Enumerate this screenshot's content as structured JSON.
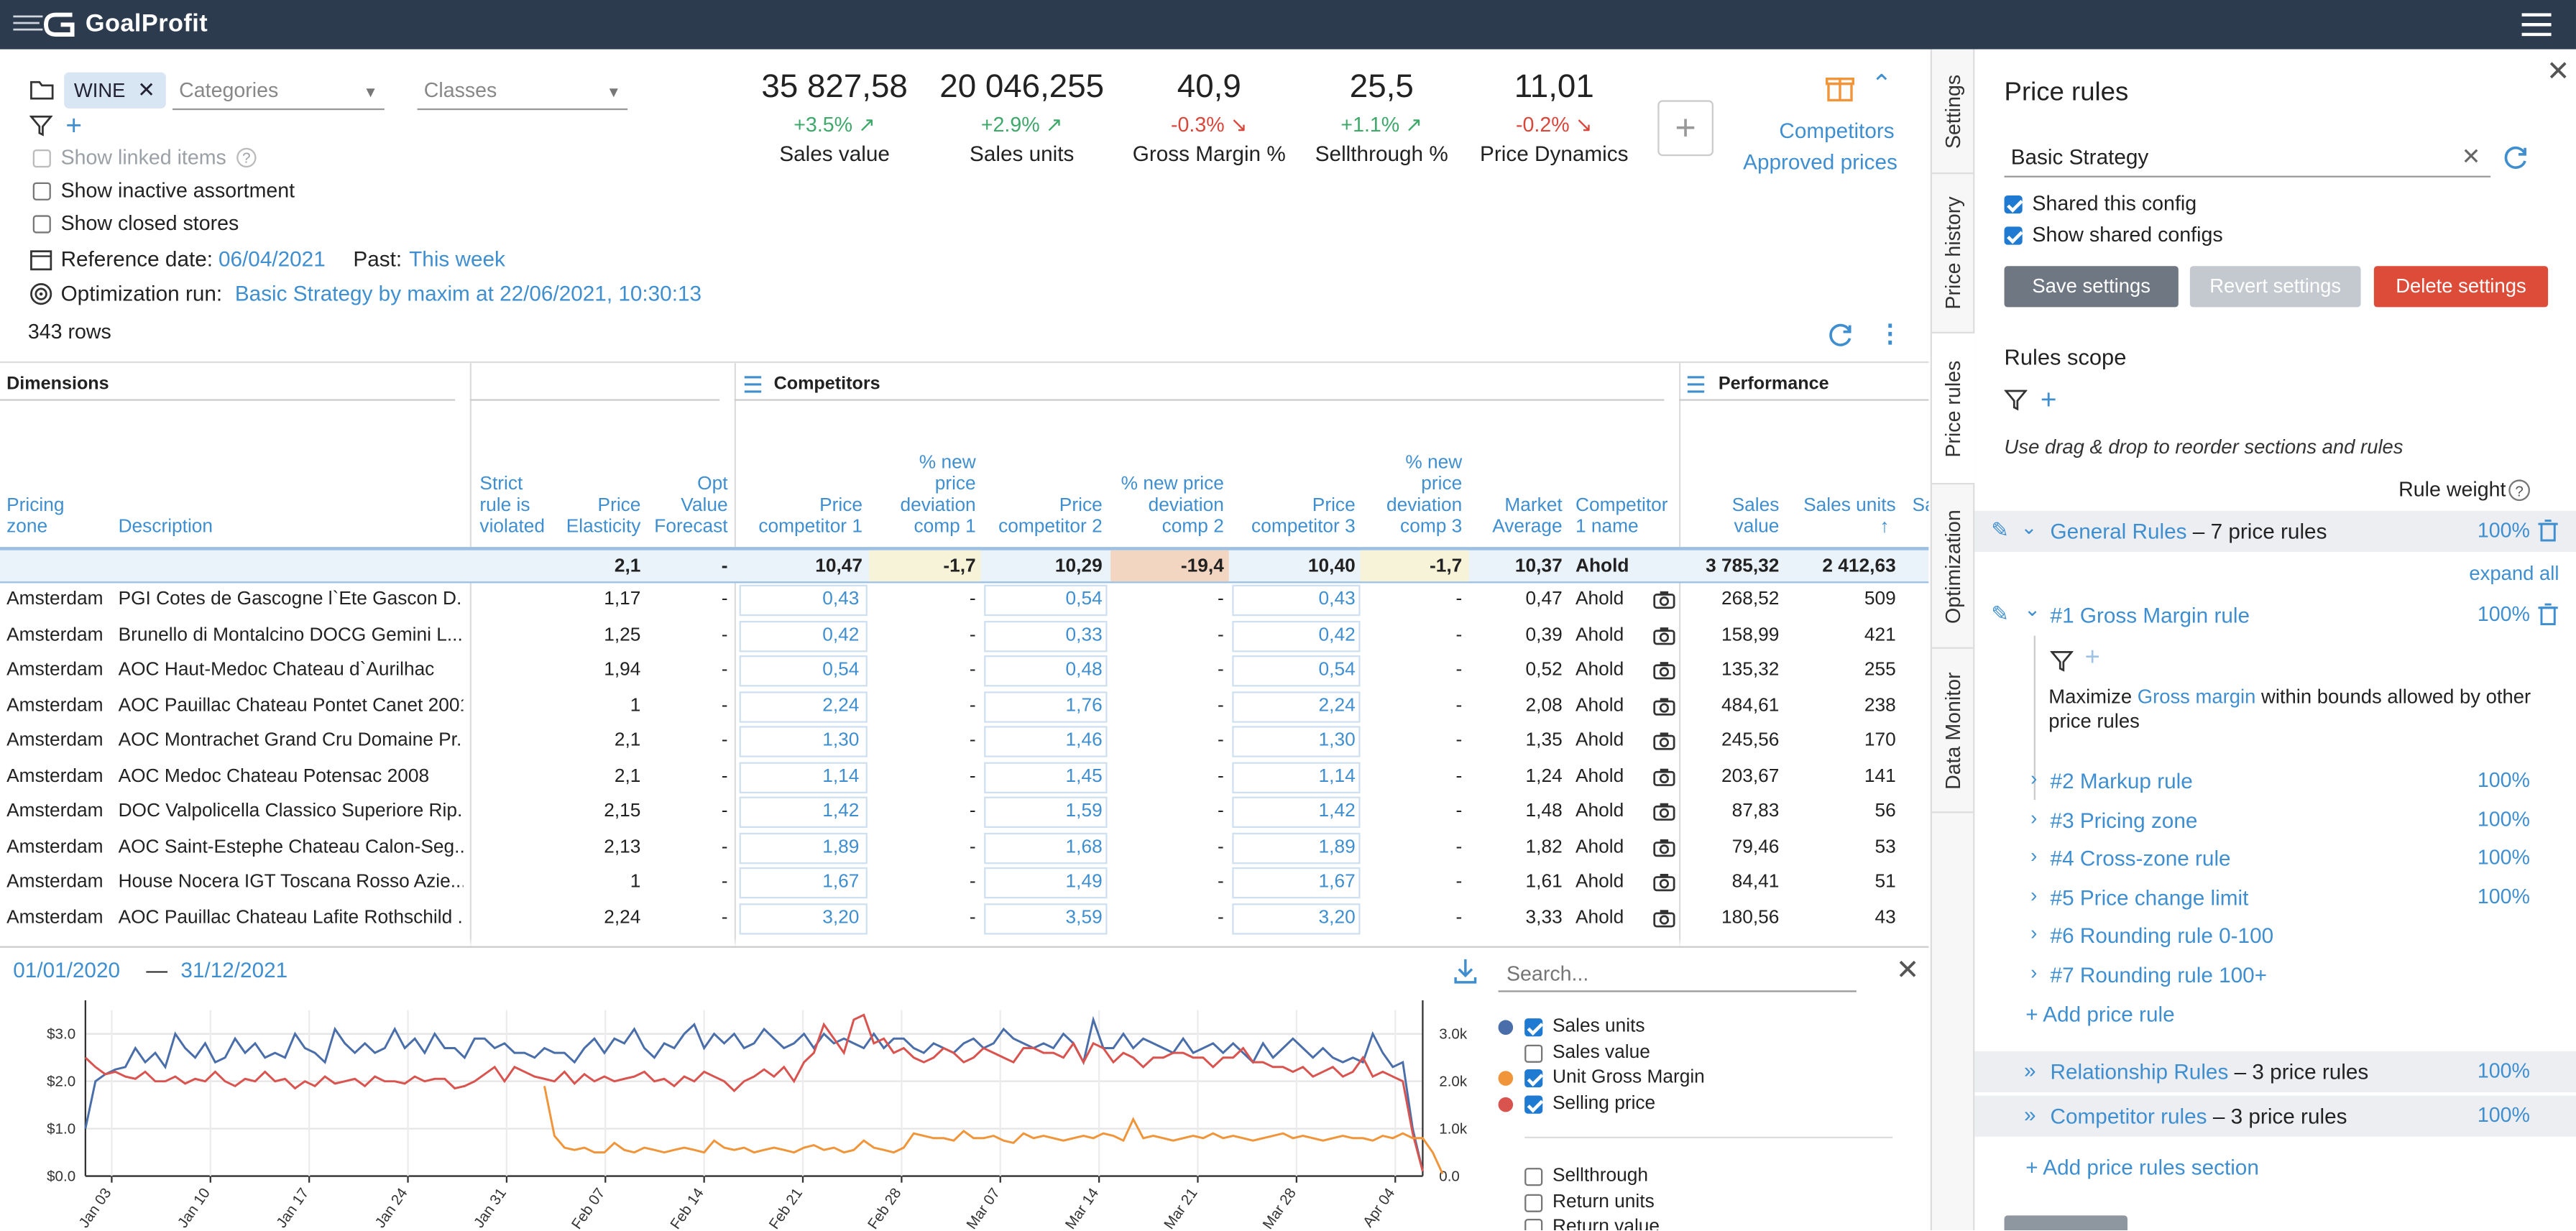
{
  "app": {
    "name": "GoalProfit"
  },
  "filters": {
    "chip": "WINE",
    "categories_placeholder": "Categories",
    "classes_placeholder": "Classes",
    "show_linked": "Show linked items",
    "show_inactive": "Show inactive assortment",
    "show_closed": "Show closed stores",
    "reference_label": "Reference date:",
    "reference_date": "06/04/2021",
    "past_label": "Past:",
    "past_value": "This week",
    "optimization_label": "Optimization run:",
    "optimization_value": "Basic Strategy by maxim at 22/06/2021, 10:30:13",
    "row_count": "343 rows"
  },
  "kpis": [
    {
      "value": "35 827,58",
      "delta": "+3.5%",
      "dir": "up",
      "label": "Sales value"
    },
    {
      "value": "20 046,255",
      "delta": "+2.9%",
      "dir": "up",
      "label": "Sales units"
    },
    {
      "value": "40,9",
      "delta": "-0.3%",
      "dir": "down",
      "label": "Gross Margin %"
    },
    {
      "value": "25,5",
      "delta": "+1.1%",
      "dir": "up",
      "label": "Sellthrough %"
    },
    {
      "value": "11,01",
      "delta": "-0.2%",
      "dir": "down",
      "label": "Price Dynamics"
    }
  ],
  "links": {
    "competitors": "Competitors",
    "approved": "Approved prices"
  },
  "table": {
    "groups": {
      "dimensions": "Dimensions",
      "competitors": "Competitors",
      "performance": "Performance"
    },
    "headers": {
      "pricing_zone": [
        "Pricing",
        "zone"
      ],
      "description": "Description",
      "strict": [
        "Strict",
        "rule is",
        "violated"
      ],
      "elasticity": [
        "Price",
        "Elasticity"
      ],
      "opt_forecast": [
        "Opt",
        "Value",
        "Forecast"
      ],
      "pc1": [
        "Price",
        "competitor 1"
      ],
      "dev1": [
        "% new",
        "price",
        "deviation",
        "comp 1"
      ],
      "pc2": [
        "Price",
        "competitor 2"
      ],
      "dev2": [
        "% new price",
        "deviation",
        "comp 2"
      ],
      "pc3": [
        "Price",
        "competitor 3"
      ],
      "dev3": [
        "% new",
        "price",
        "deviation",
        "comp 3"
      ],
      "market": [
        "Market",
        "Average"
      ],
      "comp_name": [
        "Competitor",
        "1 name"
      ],
      "sales_value": [
        "Sales",
        "value"
      ],
      "sales_units": "Sales units",
      "cut": "Sa"
    },
    "totals": {
      "elasticity": "2,1",
      "opt": "-",
      "pc1": "10,47",
      "dev1": "-1,7",
      "pc2": "10,29",
      "dev2": "-19,4",
      "pc3": "10,40",
      "dev3": "-1,7",
      "market": "10,37",
      "comp": "Ahold",
      "sales_value": "3 785,32",
      "sales_units": "2 412,63"
    },
    "rows": [
      {
        "zone": "Amsterdam",
        "desc": "PGI Cotes de Gascogne l`Ete Gascon D...",
        "el": "1,17",
        "opt": "-",
        "pc1": "0,43",
        "d1": "-",
        "pc2": "0,54",
        "d2": "-",
        "pc3": "0,43",
        "d3": "-",
        "mkt": "0,47",
        "comp": "Ahold",
        "sv": "268,52",
        "su": "509"
      },
      {
        "zone": "Amsterdam",
        "desc": "Brunello di Montalcino DOCG Gemini L...",
        "el": "1,25",
        "opt": "-",
        "pc1": "0,42",
        "d1": "-",
        "pc2": "0,33",
        "d2": "-",
        "pc3": "0,42",
        "d3": "-",
        "mkt": "0,39",
        "comp": "Ahold",
        "sv": "158,99",
        "su": "421"
      },
      {
        "zone": "Amsterdam",
        "desc": "AOC Haut-Medoc Chateau d`Aurilhac",
        "el": "1,94",
        "opt": "-",
        "pc1": "0,54",
        "d1": "-",
        "pc2": "0,48",
        "d2": "-",
        "pc3": "0,54",
        "d3": "-",
        "mkt": "0,52",
        "comp": "Ahold",
        "sv": "135,32",
        "su": "255"
      },
      {
        "zone": "Amsterdam",
        "desc": "AOC Pauillac Chateau Pontet Canet 2001",
        "el": "1",
        "opt": "-",
        "pc1": "2,24",
        "d1": "-",
        "pc2": "1,76",
        "d2": "-",
        "pc3": "2,24",
        "d3": "-",
        "mkt": "2,08",
        "comp": "Ahold",
        "sv": "484,61",
        "su": "238"
      },
      {
        "zone": "Amsterdam",
        "desc": "AOC Montrachet Grand Cru Domaine Pr...",
        "el": "2,1",
        "opt": "-",
        "pc1": "1,30",
        "d1": "-",
        "pc2": "1,46",
        "d2": "-",
        "pc3": "1,30",
        "d3": "-",
        "mkt": "1,35",
        "comp": "Ahold",
        "sv": "245,56",
        "su": "170"
      },
      {
        "zone": "Amsterdam",
        "desc": "AOC Medoc Chateau Potensac 2008",
        "el": "2,1",
        "opt": "-",
        "pc1": "1,14",
        "d1": "-",
        "pc2": "1,45",
        "d2": "-",
        "pc3": "1,14",
        "d3": "-",
        "mkt": "1,24",
        "comp": "Ahold",
        "sv": "203,67",
        "su": "141"
      },
      {
        "zone": "Amsterdam",
        "desc": "DOC Valpolicella Classico Superiore Rip...",
        "el": "2,15",
        "opt": "-",
        "pc1": "1,42",
        "d1": "-",
        "pc2": "1,59",
        "d2": "-",
        "pc3": "1,42",
        "d3": "-",
        "mkt": "1,48",
        "comp": "Ahold",
        "sv": "87,83",
        "su": "56"
      },
      {
        "zone": "Amsterdam",
        "desc": "AOC Saint-Estephe Chateau Calon-Seg...",
        "el": "2,13",
        "opt": "-",
        "pc1": "1,89",
        "d1": "-",
        "pc2": "1,68",
        "d2": "-",
        "pc3": "1,89",
        "d3": "-",
        "mkt": "1,82",
        "comp": "Ahold",
        "sv": "79,46",
        "su": "53"
      },
      {
        "zone": "Amsterdam",
        "desc": "House Nocera IGT Toscana Rosso Azie...",
        "el": "1",
        "opt": "-",
        "pc1": "1,67",
        "d1": "-",
        "pc2": "1,49",
        "d2": "-",
        "pc3": "1,67",
        "d3": "-",
        "mkt": "1,61",
        "comp": "Ahold",
        "sv": "84,41",
        "su": "51"
      },
      {
        "zone": "Amsterdam",
        "desc": "AOC Pauillac Chateau Lafite Rothschild ...",
        "el": "2,24",
        "opt": "-",
        "pc1": "3,20",
        "d1": "-",
        "pc2": "3,59",
        "d2": "-",
        "pc3": "3,20",
        "d3": "-",
        "mkt": "3,33",
        "comp": "Ahold",
        "sv": "180,56",
        "su": "43"
      }
    ]
  },
  "side_tabs": [
    "Settings",
    "Price history",
    "Price rules",
    "Optimization",
    "Data Monitor"
  ],
  "panel": {
    "title": "Price rules",
    "strategy": "Basic Strategy",
    "shared_this": "Shared this config",
    "show_shared": "Show shared configs",
    "save": "Save settings",
    "revert": "Revert settings",
    "delete": "Delete settings",
    "scope_title": "Rules scope",
    "drag_hint": "Use drag & drop to reorder sections and rules",
    "rule_weight": "Rule weight",
    "general": {
      "name": "General Rules",
      "count": "– 7 price rules",
      "pct": "100%"
    },
    "expand_all": "expand all",
    "gm_rule": {
      "name": "#1 Gross Margin rule",
      "pct": "100%"
    },
    "gm_desc_pre": "Maximize",
    "gm_desc_link": "Gross margin",
    "gm_desc_post": "within bounds allowed by other price rules",
    "rules": [
      {
        "name": "#2 Markup rule",
        "pct": "100%"
      },
      {
        "name": "#3 Pricing zone",
        "pct": "100%"
      },
      {
        "name": "#4 Cross-zone rule",
        "pct": "100%"
      },
      {
        "name": "#5 Price change limit",
        "pct": "100%"
      },
      {
        "name": "#6 Rounding rule 0-100",
        "pct": ""
      },
      {
        "name": "#7 Rounding rule 100+",
        "pct": ""
      }
    ],
    "add_rule": "Add price rule",
    "relationship": {
      "name": "Relationship Rules",
      "count": "– 3 price rules",
      "pct": "100%"
    },
    "competitor": {
      "name": "Competitor rules",
      "count": "– 3 price rules",
      "pct": "100%"
    },
    "add_section": "Add price rules section"
  },
  "chart": {
    "date_from": "01/01/2020",
    "date_sep": "—",
    "date_to": "31/12/2021",
    "search_placeholder": "Search...",
    "legend": [
      {
        "name": "Sales units",
        "checked": true,
        "color": "#4a6ea9"
      },
      {
        "name": "Sales value",
        "checked": false,
        "color": ""
      },
      {
        "name": "Unit Gross Margin",
        "checked": true,
        "color": "#f0953a"
      },
      {
        "name": "Selling price",
        "checked": true,
        "color": "#d9534f"
      },
      {
        "name": "Sellthrough",
        "checked": false,
        "color": ""
      },
      {
        "name": "Return units",
        "checked": false,
        "color": ""
      },
      {
        "name": "Return value",
        "checked": false,
        "color": ""
      }
    ]
  },
  "chart_data": {
    "type": "line",
    "x_ticks": [
      "Jan 03",
      "Jan 10",
      "Jan 17",
      "Jan 24",
      "Jan 31",
      "Feb 07",
      "Feb 14",
      "Feb 21",
      "Feb 28",
      "Mar 07",
      "Mar 14",
      "Mar 21",
      "Mar 28",
      "Apr 04"
    ],
    "y_left_ticks": [
      "$0.0",
      "$1.0",
      "$2.0",
      "$3.0"
    ],
    "y_right_ticks": [
      "0.0",
      "1.0k",
      "2.0k",
      "3.0k"
    ],
    "y_left_range": [
      0,
      3.5
    ],
    "y_right_range": [
      0,
      3500
    ],
    "series": [
      {
        "name": "Sales units",
        "axis": "right",
        "color": "#4a6ea9",
        "values": [
          1000,
          2000,
          2150,
          2250,
          2300,
          2700,
          2400,
          2600,
          2300,
          3000,
          2700,
          2500,
          2800,
          2400,
          2500,
          2900,
          2600,
          2800,
          2500,
          2600,
          2500,
          3000,
          2700,
          2600,
          2400,
          3100,
          2800,
          2600,
          2800,
          2600,
          2700,
          3100,
          2700,
          2900,
          2600,
          3000,
          2700,
          2700,
          2500,
          2900,
          2900,
          2700,
          2800,
          2600,
          2600,
          2500,
          2700,
          2600,
          2600,
          2400,
          2700,
          2900,
          2600,
          2900,
          2800,
          3100,
          2700,
          2500,
          2800,
          2700,
          3000,
          3200,
          2700,
          3000,
          2800,
          3000,
          2700,
          2800,
          3100,
          2900,
          2700,
          2800,
          3000,
          2700,
          3000,
          2800,
          2900,
          2800,
          2700,
          3000,
          2700,
          2900,
          2900,
          2700,
          2600,
          2800,
          2700,
          2600,
          2800,
          2900,
          2700,
          2800,
          3100,
          2900,
          2800,
          2700,
          2800,
          2700,
          3000,
          2800,
          2400,
          3300,
          2700,
          2700,
          3000,
          2700,
          2900,
          2800,
          2700,
          2600,
          2900,
          2600,
          2700,
          2800,
          2600,
          2800,
          2600,
          2400,
          2800,
          2500,
          2700,
          2900,
          2700,
          2500,
          2700,
          2500,
          2400,
          2500,
          2400,
          3000,
          2600,
          2300,
          2400,
          1000,
          100
        ]
      },
      {
        "name": "Selling price",
        "axis": "left",
        "color": "#d9534f",
        "values": [
          2.5,
          2.3,
          2.15,
          2.2,
          2.1,
          2.05,
          2.2,
          2.0,
          2.0,
          2.1,
          1.95,
          2.05,
          2.0,
          2.2,
          2.0,
          1.9,
          2.05,
          2.0,
          2.2,
          2.0,
          2.05,
          1.85,
          2.0,
          1.9,
          2.1,
          1.95,
          2.0,
          2.05,
          1.9,
          2.1,
          2.0,
          2.0,
          1.95,
          2.1,
          2.0,
          2.05,
          2.05,
          1.85,
          1.9,
          2.0,
          2.15,
          2.3,
          2.0,
          2.3,
          2.2,
          2.1,
          2.05,
          2.0,
          2.2,
          1.95,
          2.15,
          2.0,
          2.1,
          2.0,
          2.05,
          2.1,
          2.2,
          2.0,
          2.05,
          1.9,
          2.1,
          2.0,
          2.2,
          2.1,
          2.0,
          1.8,
          2.0,
          2.1,
          2.25,
          2.1,
          2.3,
          2.0,
          2.4,
          2.6,
          3.2,
          2.9,
          2.6,
          3.3,
          3.4,
          2.8,
          2.9,
          2.6,
          2.7,
          2.5,
          2.4,
          2.5,
          2.7,
          2.6,
          2.4,
          2.5,
          2.7,
          2.6,
          2.5,
          2.4,
          2.7,
          2.7,
          2.6,
          2.6,
          2.5,
          2.8,
          2.4,
          2.8,
          2.7,
          2.4,
          2.6,
          2.5,
          2.3,
          2.5,
          2.5,
          2.6,
          2.6,
          2.5,
          2.5,
          2.3,
          2.5,
          2.5,
          2.7,
          2.4,
          2.4,
          2.3,
          2.3,
          2.2,
          2.3,
          2.1,
          2.2,
          2.3,
          2.1,
          2.2,
          2.5,
          2.1,
          2.2,
          2.1,
          2.0,
          0.9,
          0.1
        ]
      },
      {
        "name": "Unit Gross Margin",
        "axis": "left",
        "color": "#f0953a",
        "values": [
          null,
          null,
          null,
          null,
          null,
          null,
          null,
          null,
          null,
          null,
          null,
          null,
          null,
          null,
          null,
          null,
          null,
          null,
          null,
          null,
          null,
          null,
          null,
          null,
          null,
          null,
          null,
          null,
          null,
          null,
          null,
          null,
          null,
          null,
          null,
          null,
          null,
          null,
          null,
          null,
          null,
          null,
          null,
          null,
          null,
          null,
          1.9,
          0.85,
          0.6,
          0.55,
          0.6,
          0.5,
          0.5,
          0.7,
          0.55,
          0.5,
          0.6,
          0.55,
          0.5,
          0.55,
          0.6,
          0.55,
          0.5,
          0.75,
          0.6,
          0.55,
          0.6,
          0.5,
          0.55,
          0.6,
          0.55,
          0.5,
          0.6,
          0.65,
          0.55,
          0.6,
          0.5,
          0.55,
          0.75,
          0.6,
          0.55,
          0.5,
          0.6,
          0.9,
          0.85,
          0.8,
          0.8,
          0.75,
          0.95,
          0.8,
          0.8,
          0.85,
          0.75,
          0.7,
          0.9,
          0.8,
          0.85,
          0.8,
          0.75,
          0.8,
          0.85,
          0.8,
          0.9,
          0.85,
          0.75,
          1.2,
          0.8,
          0.85,
          0.8,
          0.75,
          0.8,
          0.85,
          0.8,
          0.9,
          0.8,
          0.85,
          0.8,
          0.75,
          0.8,
          0.85,
          0.9,
          0.8,
          0.85,
          0.8,
          0.75,
          0.8,
          0.85,
          0.8,
          0.8,
          0.75,
          0.85,
          0.8,
          0.9,
          0.8,
          0.8,
          0.5,
          0.05
        ]
      }
    ]
  }
}
